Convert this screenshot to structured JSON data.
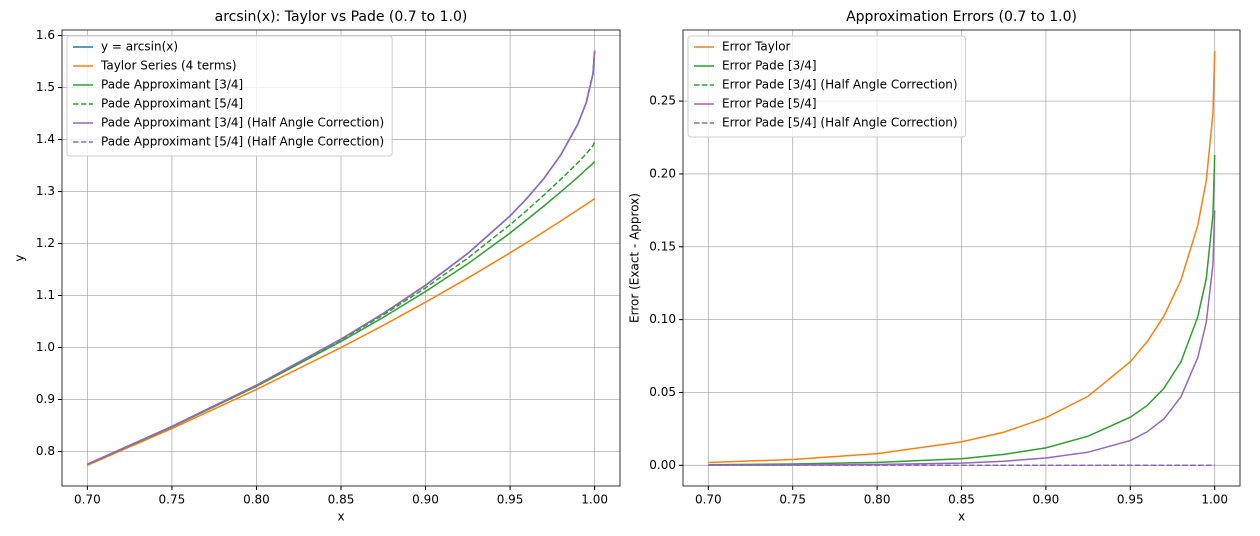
{
  "chart_data": [
    {
      "type": "line",
      "title": "arcsin(x): Taylor vs Pade (0.7 to 1.0)",
      "x_label": "x",
      "y_label": "y",
      "x": [
        0.7,
        0.75,
        0.8,
        0.85,
        0.875,
        0.9,
        0.925,
        0.95,
        0.96,
        0.97,
        0.98,
        0.99,
        0.995,
        0.999,
        1.0
      ],
      "series": [
        {
          "name": "y = arcsin(x)",
          "color": "#1f77b4",
          "dashed": false,
          "values": [
            0.7754,
            0.8481,
            0.9273,
            1.016,
            1.0654,
            1.1198,
            1.181,
            1.2532,
            1.287,
            1.3252,
            1.3705,
            1.4293,
            1.4706,
            1.526,
            1.5708
          ]
        },
        {
          "name": "Taylor Series (4 terms)",
          "color": "#ff7f0e",
          "dashed": false,
          "values": [
            0.7735,
            0.8441,
            0.9193,
            0.9999,
            1.0427,
            1.0871,
            1.1336,
            1.1821,
            1.2022,
            1.2226,
            1.2434,
            1.2647,
            1.2754,
            1.2841,
            1.2863
          ]
        },
        {
          "name": "Pade Approximant [3/4]",
          "color": "#2ca02c",
          "dashed": false,
          "values": [
            0.775,
            0.8472,
            0.9253,
            1.0115,
            1.0579,
            1.1078,
            1.161,
            1.2202,
            1.246,
            1.2722,
            1.2995,
            1.3273,
            1.3426,
            1.354,
            1.3578
          ]
        },
        {
          "name": "Pade Approximant [5/4]",
          "color": "#2ca02c",
          "dashed": true,
          "values": [
            0.7753,
            0.8479,
            0.9267,
            1.0145,
            1.0626,
            1.1148,
            1.172,
            1.2362,
            1.264,
            1.2932,
            1.3235,
            1.3553,
            1.3726,
            1.388,
            1.3958
          ]
        },
        {
          "name": "Pade Approximant [3/4] (Half Angle Correction)",
          "color": "#9467bd",
          "dashed": false,
          "values": [
            0.7754,
            0.8481,
            0.9273,
            1.016,
            1.0654,
            1.1198,
            1.181,
            1.2532,
            1.287,
            1.3252,
            1.3705,
            1.4293,
            1.4706,
            1.526,
            1.5708
          ]
        },
        {
          "name": "Pade Approximant [5/4] (Half Angle Correction)",
          "color": "#9467bd",
          "dashed": true,
          "values": [
            0.7754,
            0.8481,
            0.9273,
            1.016,
            1.0654,
            1.1198,
            1.181,
            1.2532,
            1.287,
            1.3252,
            1.3705,
            1.4293,
            1.4706,
            1.526,
            1.5708
          ]
        }
      ],
      "xlim": [
        0.685,
        1.015
      ],
      "ylim": [
        0.7336,
        1.6107
      ],
      "xticks": [
        {
          "value": 0.7,
          "label": "0.70"
        },
        0.75,
        {
          "value": 0.8,
          "label": "0.80"
        },
        0.85,
        {
          "value": 0.9,
          "label": "0.90"
        },
        0.95,
        {
          "value": 1,
          "label": "1.00"
        }
      ],
      "yticks": [
        0.8,
        0.9,
        {
          "value": 1,
          "label": "1.0"
        },
        1.1,
        1.2,
        1.3,
        1.4,
        1.5,
        1.6
      ],
      "grid": true,
      "legend": "upper left"
    },
    {
      "type": "line",
      "title": "Approximation Errors (0.7 to 1.0)",
      "x_label": "x",
      "y_label": "Error (Exact - Approx)",
      "x": [
        0.7,
        0.75,
        0.8,
        0.85,
        0.875,
        0.9,
        0.925,
        0.95,
        0.96,
        0.97,
        0.98,
        0.99,
        0.995,
        0.999,
        1.0
      ],
      "series": [
        {
          "name": "Error Taylor",
          "color": "#ff7f0e",
          "dashed": false,
          "values": [
            0.0019,
            0.004,
            0.008,
            0.0161,
            0.0227,
            0.0327,
            0.0474,
            0.0711,
            0.0848,
            0.1026,
            0.1271,
            0.1647,
            0.1952,
            0.2419,
            0.2845
          ]
        },
        {
          "name": "Error Pade [3/4]",
          "color": "#2ca02c",
          "dashed": false,
          "values": [
            0.0004,
            0.0009,
            0.002,
            0.0045,
            0.0075,
            0.012,
            0.02,
            0.033,
            0.041,
            0.053,
            0.071,
            0.102,
            0.128,
            0.172,
            0.213
          ]
        },
        {
          "name": "Error Pade [3/4] (Half Angle Correction)",
          "color": "#2ca02c",
          "dashed": true,
          "values": [
            0,
            0,
            0,
            0,
            0,
            0,
            0,
            0,
            0,
            0,
            0,
            0,
            0,
            0,
            0
          ]
        },
        {
          "name": "Error Pade [5/4]",
          "color": "#9467bd",
          "dashed": false,
          "values": [
            0.0001,
            0.0002,
            0.0006,
            0.0015,
            0.0028,
            0.005,
            0.009,
            0.017,
            0.023,
            0.032,
            0.047,
            0.074,
            0.098,
            0.138,
            0.175
          ]
        },
        {
          "name": "Error Pade [5/4] (Half Angle Correction)",
          "color": "#9467bd",
          "dashed": true,
          "values": [
            0,
            0,
            0,
            0,
            0,
            0,
            0,
            0,
            0,
            0,
            0,
            0,
            0,
            0,
            0
          ]
        }
      ],
      "xlim": [
        0.685,
        1.015
      ],
      "ylim": [
        -0.0142,
        0.2988
      ],
      "xticks": [
        {
          "value": 0.7,
          "label": "0.70"
        },
        0.75,
        {
          "value": 0.8,
          "label": "0.80"
        },
        0.85,
        {
          "value": 0.9,
          "label": "0.90"
        },
        0.95,
        {
          "value": 1,
          "label": "1.00"
        }
      ],
      "yticks": [
        {
          "value": 0,
          "label": "0.00"
        },
        0.05,
        {
          "value": 0.1,
          "label": "0.10"
        },
        0.15,
        {
          "value": 0.2,
          "label": "0.20"
        },
        0.25
      ],
      "grid": true,
      "legend": "upper left"
    }
  ]
}
